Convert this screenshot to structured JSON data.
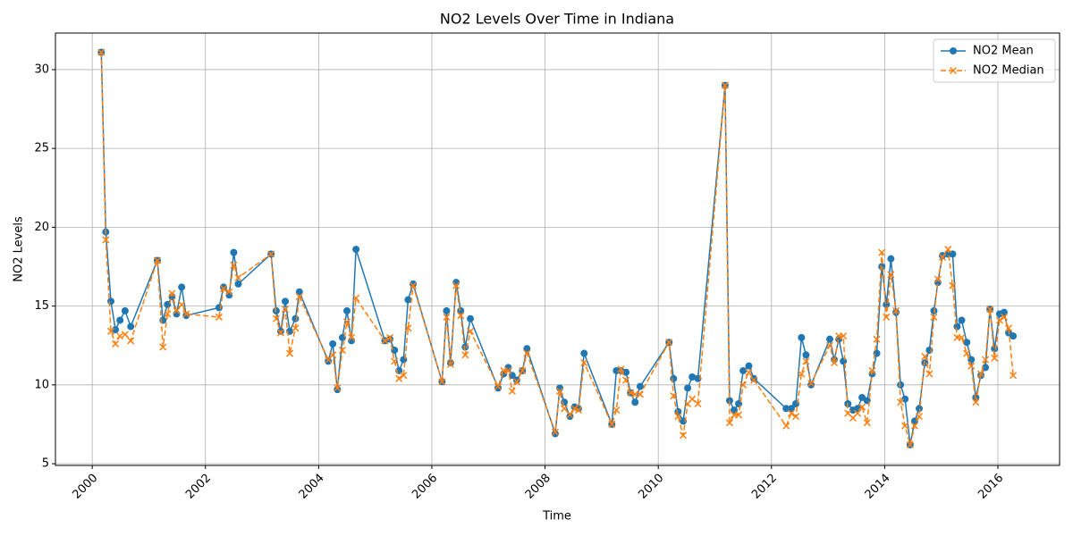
{
  "chart_data": {
    "type": "line",
    "title": "NO2 Levels Over Time in Indiana",
    "xlabel": "Time",
    "ylabel": "NO2 Levels",
    "x": [
      2000.16,
      2000.24,
      2000.33,
      2000.41,
      2000.49,
      2000.58,
      2000.68,
      2001.15,
      2001.25,
      2001.33,
      2001.41,
      2001.49,
      2001.58,
      2001.66,
      2002.24,
      2002.32,
      2002.42,
      2002.5,
      2002.58,
      2003.16,
      2003.25,
      2003.33,
      2003.41,
      2003.49,
      2003.59,
      2003.66,
      2004.17,
      2004.25,
      2004.33,
      2004.42,
      2004.5,
      2004.58,
      2004.66,
      2005.17,
      2005.26,
      2005.34,
      2005.42,
      2005.5,
      2005.58,
      2005.67,
      2006.18,
      2006.26,
      2006.33,
      2006.43,
      2006.51,
      2006.59,
      2006.68,
      2007.17,
      2007.27,
      2007.35,
      2007.42,
      2007.5,
      2007.6,
      2007.68,
      2008.18,
      2008.26,
      2008.34,
      2008.44,
      2008.52,
      2008.59,
      2008.69,
      2009.18,
      2009.26,
      2009.34,
      2009.43,
      2009.51,
      2009.59,
      2009.68,
      2010.19,
      2010.27,
      2010.35,
      2010.44,
      2010.52,
      2010.6,
      2010.7,
      2011.18,
      2011.26,
      2011.34,
      2011.42,
      2011.5,
      2011.6,
      2011.69,
      2012.26,
      2012.35,
      2012.43,
      2012.53,
      2012.61,
      2012.7,
      2013.03,
      2013.11,
      2013.19,
      2013.27,
      2013.35,
      2013.44,
      2013.52,
      2013.6,
      2013.69,
      2013.78,
      2013.86,
      2013.95,
      2014.03,
      2014.11,
      2014.2,
      2014.28,
      2014.36,
      2014.45,
      2014.53,
      2014.61,
      2014.71,
      2014.79,
      2014.87,
      2014.94,
      2015.02,
      2015.12,
      2015.2,
      2015.28,
      2015.36,
      2015.45,
      2015.53,
      2015.61,
      2015.7,
      2015.78,
      2015.86,
      2015.94,
      2016.03,
      2016.11,
      2016.19,
      2016.27
    ],
    "series": [
      {
        "name": "NO2 Mean",
        "color": "#1f77b4",
        "marker": "o",
        "linestyle": "solid",
        "values": [
          31.1,
          19.7,
          15.3,
          13.5,
          14.1,
          14.7,
          13.7,
          17.9,
          14.1,
          15.1,
          15.6,
          14.5,
          16.2,
          14.4,
          14.9,
          16.2,
          15.7,
          18.4,
          16.4,
          18.3,
          14.7,
          13.4,
          15.3,
          13.4,
          14.2,
          15.9,
          11.5,
          12.6,
          9.7,
          13.0,
          14.7,
          12.8,
          18.6,
          12.8,
          12.9,
          12.2,
          10.9,
          11.6,
          15.4,
          16.4,
          10.2,
          14.7,
          11.4,
          16.5,
          14.7,
          12.4,
          14.2,
          9.8,
          10.7,
          11.1,
          10.6,
          10.3,
          10.9,
          12.3,
          6.9,
          9.8,
          8.9,
          8.0,
          8.6,
          8.5,
          12.0,
          7.5,
          10.9,
          10.9,
          10.8,
          9.5,
          8.9,
          9.9,
          12.7,
          10.4,
          8.3,
          7.7,
          9.8,
          10.5,
          10.4,
          29.0,
          9.0,
          8.4,
          8.8,
          10.9,
          11.2,
          10.4,
          8.5,
          8.5,
          8.8,
          13.0,
          11.9,
          10.0,
          12.9,
          11.6,
          12.9,
          11.5,
          8.8,
          8.4,
          8.5,
          9.2,
          9.0,
          10.7,
          12.0,
          17.5,
          15.1,
          18.0,
          14.6,
          10.0,
          9.1,
          6.2,
          7.7,
          8.5,
          11.4,
          12.2,
          14.7,
          16.5,
          18.2,
          18.3,
          18.3,
          13.7,
          14.1,
          12.7,
          11.6,
          9.2,
          10.6,
          11.1,
          14.8,
          12.3,
          14.5,
          14.6,
          13.3,
          13.1
        ]
      },
      {
        "name": "NO2 Median",
        "color": "#ff7f0e",
        "marker": "x",
        "linestyle": "dashed",
        "values": [
          31.1,
          19.2,
          13.4,
          12.6,
          13.1,
          13.2,
          12.8,
          17.9,
          12.4,
          14.5,
          15.8,
          14.7,
          15.1,
          14.5,
          14.3,
          16.1,
          15.9,
          17.6,
          16.8,
          18.3,
          14.2,
          13.3,
          14.8,
          12.0,
          13.6,
          15.6,
          11.6,
          11.9,
          9.8,
          12.2,
          14.0,
          13.0,
          15.5,
          12.8,
          13.0,
          11.5,
          10.4,
          10.6,
          13.6,
          16.3,
          10.2,
          14.3,
          11.3,
          16.3,
          14.4,
          11.9,
          13.4,
          9.9,
          10.9,
          10.9,
          9.6,
          10.2,
          10.9,
          12.0,
          7.0,
          9.6,
          8.5,
          8.1,
          8.5,
          8.4,
          11.4,
          7.5,
          8.4,
          11.0,
          10.3,
          9.5,
          9.4,
          9.4,
          12.7,
          9.3,
          8.0,
          6.8,
          8.8,
          9.1,
          8.8,
          29.0,
          7.6,
          8.1,
          8.1,
          10.0,
          10.8,
          10.3,
          7.4,
          8.2,
          8.0,
          10.7,
          11.5,
          10.1,
          12.5,
          11.4,
          13.1,
          13.1,
          8.2,
          7.9,
          8.2,
          8.6,
          7.6,
          10.9,
          12.9,
          18.4,
          14.3,
          17.0,
          14.7,
          8.9,
          7.4,
          6.2,
          7.4,
          8.0,
          11.8,
          10.7,
          14.3,
          16.7,
          18.1,
          18.6,
          16.3,
          13.0,
          13.0,
          12.0,
          11.2,
          8.9,
          10.7,
          11.6,
          14.8,
          11.7,
          14.1,
          14.3,
          13.6,
          10.6
        ]
      }
    ],
    "xlim": [
      1999.35,
      2017.09
    ],
    "xticks": [
      2000,
      2002,
      2004,
      2006,
      2008,
      2010,
      2012,
      2014,
      2016
    ],
    "ylim": [
      4.89,
      32.32
    ],
    "yticks": [
      5,
      10,
      15,
      20,
      25,
      30
    ],
    "grid": true,
    "legend": "upper right"
  }
}
